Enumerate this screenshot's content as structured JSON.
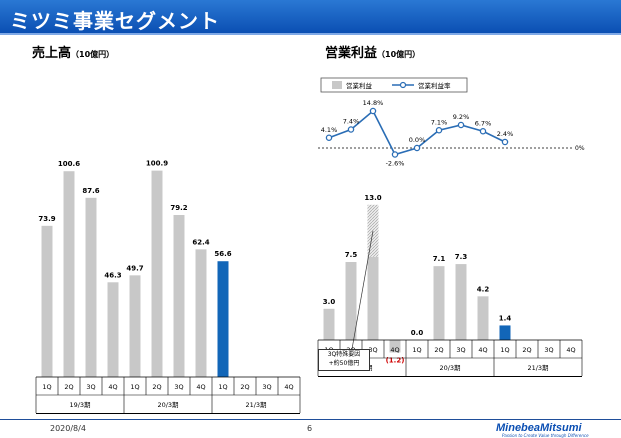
{
  "header": {
    "title": "ミツミ事業セグメント"
  },
  "sales": {
    "title": "売上高",
    "unit": "（10億円）"
  },
  "op": {
    "title": "営業利益",
    "unit": "（10億円）"
  },
  "legend": {
    "bar_label": "営業利益",
    "line_label": "営業利益率"
  },
  "callout": {
    "line1": "3Q特殊要因",
    "line2": "+約50億円"
  },
  "footer": {
    "date": "2020/8/4",
    "page": "6"
  },
  "logo": {
    "name": "MinebeaMitsumi",
    "tagline": "Passion to Create Value through Difference"
  },
  "colors": {
    "bar_gray": "#c8c8c8",
    "bar_blue": "#1266b8",
    "line_blue": "#2a6db5",
    "banner": "#0b4fb3"
  },
  "chart_data": [
    {
      "type": "bar",
      "title": "売上高",
      "unit": "10億円",
      "quarters": [
        "1Q",
        "2Q",
        "3Q",
        "4Q",
        "1Q",
        "2Q",
        "3Q",
        "4Q",
        "1Q",
        "2Q",
        "3Q",
        "4Q"
      ],
      "groups": [
        "19/3期",
        "20/3期",
        "21/3期"
      ],
      "values": [
        73.9,
        100.6,
        87.6,
        46.3,
        49.7,
        100.9,
        79.2,
        62.4,
        56.6,
        null,
        null,
        null
      ],
      "labels": [
        "73.9",
        "100.6",
        "87.6",
        "46.3",
        "49.7",
        "100.9",
        "79.2",
        "62.4",
        "56.6",
        "",
        "",
        ""
      ],
      "highlight_index": 8,
      "ylim": [
        0,
        110
      ]
    },
    {
      "type": "bar",
      "title": "営業利益",
      "unit": "10億円",
      "quarters": [
        "1Q",
        "2Q",
        "3Q",
        "4Q",
        "1Q",
        "2Q",
        "3Q",
        "4Q",
        "1Q",
        "2Q",
        "3Q",
        "4Q"
      ],
      "groups": [
        "19/3期",
        "20/3期",
        "21/3期"
      ],
      "values": [
        3.0,
        7.5,
        13.0,
        -1.2,
        0.0,
        7.1,
        7.3,
        4.2,
        1.4,
        null,
        null,
        null
      ],
      "labels": [
        "3.0",
        "7.5",
        "13.0",
        "(1.2)",
        "0.0",
        "7.1",
        "7.3",
        "4.2",
        "1.4",
        "",
        "",
        ""
      ],
      "special_factor_index": 2,
      "special_factor_value": 5.0,
      "highlight_index": 8,
      "ylim": [
        -2,
        14
      ]
    },
    {
      "type": "line",
      "title": "営業利益率",
      "values": [
        4.1,
        7.4,
        14.8,
        -2.6,
        0.0,
        7.1,
        9.2,
        6.7,
        2.4
      ],
      "labels": [
        "4.1%",
        "7.4%",
        "14.8%",
        "-2.6%",
        "0.0%",
        "7.1%",
        "9.2%",
        "6.7%",
        "2.4%"
      ],
      "baseline_label": "0%"
    }
  ]
}
